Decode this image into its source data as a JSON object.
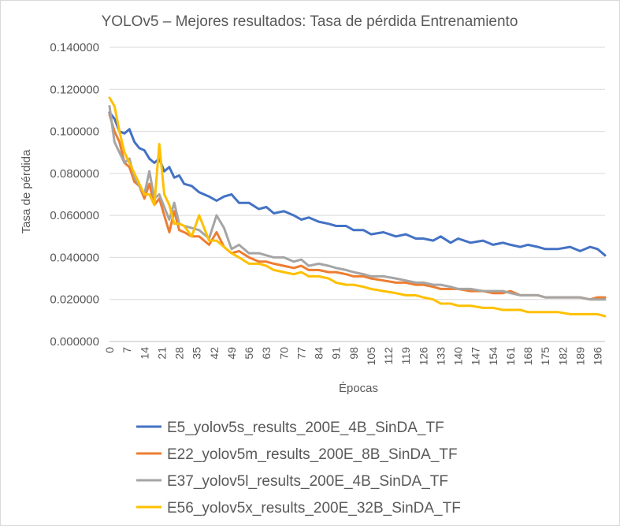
{
  "chart_data": {
    "type": "line",
    "title": "YOLOv5 – Mejores resultados: Tasa de pérdida Entrenamiento",
    "xlabel": "Épocas",
    "ylabel": "Tasa de pérdida",
    "xlim": [
      0,
      199
    ],
    "ylim": [
      0,
      0.14
    ],
    "y_ticks": [
      "0.000000",
      "0.020000",
      "0.040000",
      "0.060000",
      "0.080000",
      "0.100000",
      "0.120000",
      "0.140000"
    ],
    "x_ticks": [
      0,
      7,
      14,
      21,
      28,
      35,
      42,
      49,
      56,
      63,
      70,
      77,
      84,
      91,
      98,
      105,
      112,
      119,
      126,
      133,
      140,
      147,
      154,
      161,
      168,
      175,
      182,
      189,
      196
    ],
    "grid": true,
    "legend_position": "bottom",
    "series": [
      {
        "name": "E5_yolov5s_results_200E_4B_SinDA_TF",
        "color": "#4472C4",
        "x": [
          0,
          2,
          4,
          6,
          8,
          10,
          12,
          14,
          16,
          18,
          20,
          22,
          24,
          26,
          28,
          30,
          33,
          36,
          40,
          43,
          46,
          49,
          52,
          56,
          60,
          63,
          66,
          70,
          74,
          77,
          80,
          84,
          88,
          91,
          95,
          98,
          102,
          105,
          110,
          115,
          119,
          123,
          126,
          130,
          133,
          137,
          140,
          145,
          150,
          154,
          158,
          161,
          165,
          168,
          172,
          175,
          180,
          185,
          189,
          193,
          196,
          199
        ],
        "y": [
          0.109,
          0.106,
          0.1,
          0.099,
          0.101,
          0.095,
          0.092,
          0.091,
          0.087,
          0.085,
          0.087,
          0.081,
          0.083,
          0.078,
          0.079,
          0.075,
          0.074,
          0.071,
          0.069,
          0.067,
          0.069,
          0.07,
          0.066,
          0.066,
          0.063,
          0.064,
          0.061,
          0.062,
          0.06,
          0.058,
          0.059,
          0.057,
          0.056,
          0.055,
          0.055,
          0.053,
          0.053,
          0.051,
          0.052,
          0.05,
          0.051,
          0.049,
          0.049,
          0.048,
          0.05,
          0.047,
          0.049,
          0.047,
          0.048,
          0.046,
          0.047,
          0.046,
          0.045,
          0.046,
          0.045,
          0.044,
          0.044,
          0.045,
          0.043,
          0.045,
          0.044,
          0.041
        ]
      },
      {
        "name": "E22_yolov5m_results_200E_8B_SinDA_TF",
        "color": "#ED7D31",
        "x": [
          0,
          2,
          4,
          6,
          8,
          10,
          12,
          14,
          16,
          18,
          20,
          22,
          24,
          26,
          28,
          30,
          33,
          36,
          40,
          43,
          46,
          49,
          52,
          56,
          60,
          63,
          66,
          70,
          74,
          77,
          80,
          84,
          88,
          91,
          95,
          98,
          102,
          105,
          110,
          115,
          119,
          123,
          126,
          130,
          133,
          137,
          140,
          145,
          150,
          154,
          158,
          161,
          165,
          168,
          172,
          175,
          180,
          185,
          189,
          193,
          196,
          199
        ],
        "y": [
          0.108,
          0.1,
          0.095,
          0.085,
          0.083,
          0.076,
          0.074,
          0.068,
          0.075,
          0.065,
          0.068,
          0.06,
          0.052,
          0.062,
          0.053,
          0.052,
          0.05,
          0.05,
          0.046,
          0.052,
          0.045,
          0.042,
          0.043,
          0.04,
          0.038,
          0.038,
          0.037,
          0.036,
          0.035,
          0.036,
          0.034,
          0.034,
          0.033,
          0.033,
          0.032,
          0.031,
          0.031,
          0.03,
          0.029,
          0.028,
          0.028,
          0.027,
          0.027,
          0.026,
          0.025,
          0.025,
          0.025,
          0.024,
          0.024,
          0.023,
          0.023,
          0.024,
          0.022,
          0.022,
          0.022,
          0.021,
          0.021,
          0.021,
          0.021,
          0.02,
          0.021,
          0.021
        ]
      },
      {
        "name": "E37_yolov5l_results_200E_4B_SinDA_TF",
        "color": "#A5A5A5",
        "x": [
          0,
          2,
          4,
          6,
          8,
          10,
          12,
          14,
          16,
          18,
          20,
          22,
          24,
          26,
          28,
          30,
          33,
          36,
          40,
          43,
          46,
          49,
          52,
          56,
          60,
          63,
          66,
          70,
          74,
          77,
          80,
          84,
          88,
          91,
          95,
          98,
          102,
          105,
          110,
          115,
          119,
          123,
          126,
          130,
          133,
          137,
          140,
          145,
          150,
          154,
          158,
          161,
          165,
          168,
          172,
          175,
          180,
          185,
          189,
          193,
          196,
          199
        ],
        "y": [
          0.112,
          0.095,
          0.09,
          0.085,
          0.087,
          0.078,
          0.074,
          0.07,
          0.081,
          0.068,
          0.07,
          0.064,
          0.058,
          0.066,
          0.056,
          0.055,
          0.054,
          0.053,
          0.049,
          0.06,
          0.054,
          0.044,
          0.046,
          0.042,
          0.042,
          0.041,
          0.04,
          0.04,
          0.038,
          0.039,
          0.036,
          0.037,
          0.036,
          0.035,
          0.034,
          0.033,
          0.032,
          0.031,
          0.031,
          0.03,
          0.029,
          0.028,
          0.028,
          0.027,
          0.027,
          0.026,
          0.025,
          0.025,
          0.024,
          0.024,
          0.024,
          0.023,
          0.022,
          0.022,
          0.022,
          0.021,
          0.021,
          0.021,
          0.021,
          0.02,
          0.02,
          0.02
        ]
      },
      {
        "name": "E56_yolov5x_results_200E_32B_SinDA_TF",
        "color": "#FFC000",
        "x": [
          0,
          2,
          4,
          6,
          8,
          10,
          12,
          14,
          16,
          18,
          20,
          22,
          24,
          26,
          28,
          30,
          33,
          36,
          40,
          43,
          46,
          49,
          52,
          56,
          60,
          63,
          66,
          70,
          74,
          77,
          80,
          84,
          88,
          91,
          95,
          98,
          102,
          105,
          110,
          115,
          119,
          123,
          126,
          130,
          133,
          137,
          140,
          145,
          150,
          154,
          158,
          161,
          165,
          168,
          172,
          175,
          180,
          185,
          189,
          193,
          196,
          199
        ],
        "y": [
          0.116,
          0.112,
          0.1,
          0.09,
          0.085,
          0.08,
          0.075,
          0.07,
          0.07,
          0.065,
          0.094,
          0.07,
          0.065,
          0.056,
          0.056,
          0.055,
          0.05,
          0.06,
          0.048,
          0.048,
          0.045,
          0.042,
          0.04,
          0.037,
          0.037,
          0.036,
          0.034,
          0.033,
          0.032,
          0.033,
          0.031,
          0.031,
          0.03,
          0.028,
          0.027,
          0.027,
          0.026,
          0.025,
          0.024,
          0.023,
          0.022,
          0.022,
          0.021,
          0.02,
          0.018,
          0.018,
          0.017,
          0.017,
          0.016,
          0.016,
          0.015,
          0.015,
          0.015,
          0.014,
          0.014,
          0.014,
          0.014,
          0.013,
          0.013,
          0.013,
          0.013,
          0.012
        ]
      }
    ]
  }
}
